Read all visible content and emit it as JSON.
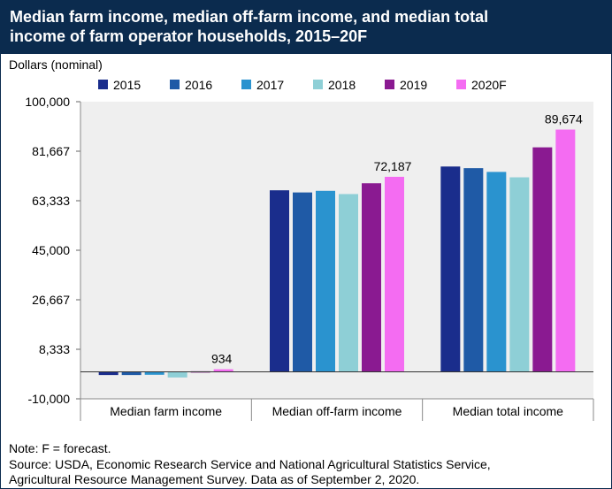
{
  "header": {
    "title_line1": "Median farm income, median off-farm income, and median total",
    "title_line2": "income of farm operator households, 2015–20F"
  },
  "notes": {
    "note": "Note: F = forecast.",
    "source_line1": "Source: USDA, Economic Research Service and National Agricultural Statistics Service,",
    "source_line2": "Agricultural Resource Management Survey. Data as of September 2, 2020."
  },
  "chart_data": {
    "type": "bar",
    "title": "Median farm income, median off-farm income, and median total income of farm operator households, 2015–20F",
    "ylabel": "Dollars (nominal)",
    "xlabel": "",
    "categories": [
      "Median farm income",
      "Median off-farm income",
      "Median total income"
    ],
    "ylim": [
      -10000,
      100000
    ],
    "yticks": [
      "100,000",
      "81,667",
      "63,333",
      "45,000",
      "26,667",
      "8,333",
      "-10,000"
    ],
    "ytick_values": [
      100000,
      81667,
      63333,
      45000,
      26667,
      8333,
      -10000
    ],
    "grid": false,
    "legend_position": "top",
    "series": [
      {
        "name": "2015",
        "color": "#1a2d8c",
        "values": [
          -1200,
          67200,
          76000
        ]
      },
      {
        "name": "2016",
        "color": "#1f5aa6",
        "values": [
          -1200,
          66400,
          75400
        ]
      },
      {
        "name": "2017",
        "color": "#2a93cf",
        "values": [
          -1100,
          67000,
          74000
        ]
      },
      {
        "name": "2018",
        "color": "#8ecfd6",
        "values": [
          -2100,
          65800,
          72000
        ]
      },
      {
        "name": "2019",
        "color": "#8a1a91",
        "values": [
          200,
          69800,
          83100
        ]
      },
      {
        "name": "2020F",
        "color": "#f46cf2",
        "values": [
          934,
          72187,
          89674
        ]
      }
    ],
    "data_labels": [
      {
        "series": "2020F",
        "category": "Median farm income",
        "text": "934"
      },
      {
        "series": "2020F",
        "category": "Median off-farm income",
        "text": "72,187"
      },
      {
        "series": "2020F",
        "category": "Median total income",
        "text": "89,674"
      }
    ]
  }
}
